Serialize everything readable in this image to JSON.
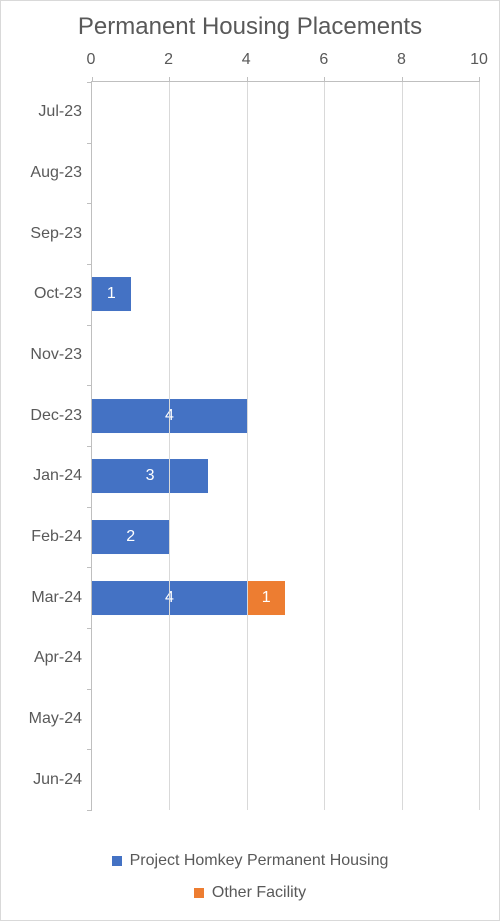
{
  "chart": {
    "type": "stacked-horizontal-bar",
    "title": "Permanent Housing Placements",
    "title_fontsize": 24,
    "title_color": "#595959",
    "background_color": "#ffffff",
    "plot_border_color": "#bfbfbf",
    "outer_border_color": "#d9d9d9",
    "grid_color": "#d9d9d9",
    "axis_label_color": "#595959",
    "axis_label_fontsize": 16,
    "data_label_color": "#ffffff",
    "data_label_fontsize": 16,
    "xlim": [
      0,
      10
    ],
    "xtick_step": 2,
    "xticks": [
      0,
      2,
      4,
      6,
      8,
      10
    ],
    "categories": [
      "Jul-23",
      "Aug-23",
      "Sep-23",
      "Oct-23",
      "Nov-23",
      "Dec-23",
      "Jan-24",
      "Feb-24",
      "Mar-24",
      "Apr-24",
      "May-24",
      "Jun-24"
    ],
    "series": [
      {
        "name": "Project Homkey Permanent Housing",
        "color": "#4472c4",
        "values": [
          0,
          0,
          0,
          1,
          0,
          4,
          3,
          2,
          4,
          0,
          0,
          0
        ]
      },
      {
        "name": "Other Facility",
        "color": "#ed7d31",
        "values": [
          0,
          0,
          0,
          0,
          0,
          0,
          0,
          0,
          1,
          0,
          0,
          0
        ]
      }
    ],
    "bar_width_ratio": 0.56,
    "legend_position": "bottom",
    "legend_fontsize": 16,
    "legend_color": "#595959"
  }
}
